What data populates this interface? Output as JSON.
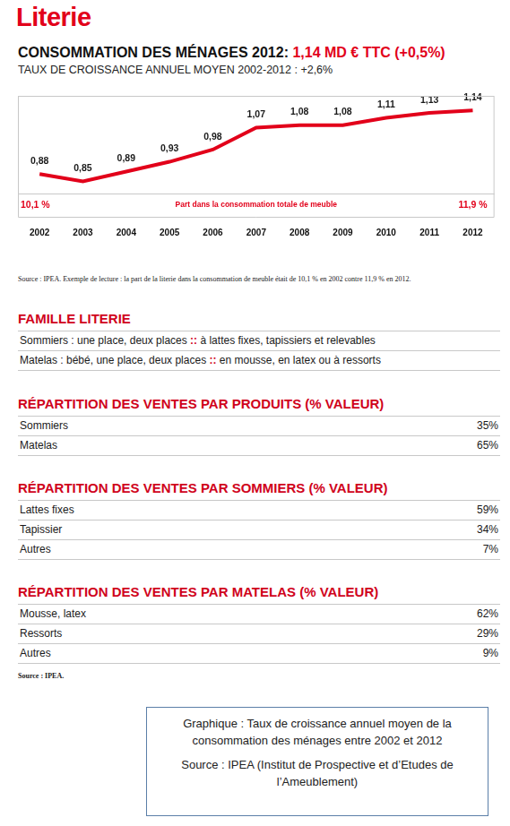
{
  "header": {
    "title": "Literie",
    "headline": [
      "CONSOMMATION DES MÉNAGES 2012:",
      "1,14 MD € TTC (+0,5%)"
    ],
    "subtitle": "TAUX DE CROISSANCE ANNUEL MOYEN 2002-2012 : +2,6%"
  },
  "chart_data": {
    "type": "line",
    "categories": [
      "2002",
      "2003",
      "2004",
      "2005",
      "2006",
      "2007",
      "2008",
      "2009",
      "2010",
      "2011",
      "2012"
    ],
    "values": [
      0.88,
      0.85,
      0.89,
      0.93,
      0.98,
      1.07,
      1.08,
      1.08,
      1.11,
      1.13,
      1.14
    ],
    "value_labels": [
      "0,88",
      "0,85",
      "0,89",
      "0,93",
      "0,98",
      "1,07",
      "1,08",
      "1,08",
      "1,11",
      "1,13",
      "1,14"
    ],
    "color": "#e2001a",
    "ylim": [
      0.8,
      1.2
    ],
    "yticks": [],
    "grid": false,
    "data_labels": true,
    "tick_labels": "x",
    "annotations": [
      "10,1 %",
      "Part dans la consommation totale de meuble",
      "11,9 %"
    ]
  },
  "chart_note": "Source : IPEA. Exemple de lecture : la part de la literie dans la consommation de meuble était de 10,1 % en 2002 contre 11,9 % en 2012.",
  "sections": [
    {
      "title": "FAMILLE LITERIE",
      "rows": [
        [
          "Sommiers : une place, deux places",
          "::",
          "à lattes fixes, tapissiers et relevables"
        ],
        [
          "Matelas : bébé, une place, deux places",
          "::",
          "en mousse, en latex ou à ressorts"
        ]
      ]
    },
    {
      "title": "RÉPARTITION DES VENTES PAR PRODUITS (% VALEUR)",
      "rows": [
        [
          "Sommiers",
          "35%"
        ],
        [
          "Matelas",
          "65%"
        ]
      ]
    },
    {
      "title": "RÉPARTITION DES VENTES PAR SOMMIERS (% VALEUR)",
      "rows": [
        [
          "Lattes fixes",
          "59%"
        ],
        [
          "Tapissier",
          "34%"
        ],
        [
          "Autres",
          "7%"
        ]
      ]
    },
    {
      "title": "RÉPARTITION DES VENTES PAR MATELAS (% VALEUR)",
      "rows": [
        [
          "Mousse, latex",
          "62%"
        ],
        [
          "Ressorts",
          "29%"
        ],
        [
          "Autres",
          "9%"
        ]
      ]
    }
  ],
  "source": "Source : IPEA.",
  "caption_box": [
    "Graphique : Taux de croissance annuel moyen de la consommation des ménages entre 2002 et 2012",
    "Source : IPEA (Institut de Prospective et d’Etudes de l’Ameublement)"
  ]
}
